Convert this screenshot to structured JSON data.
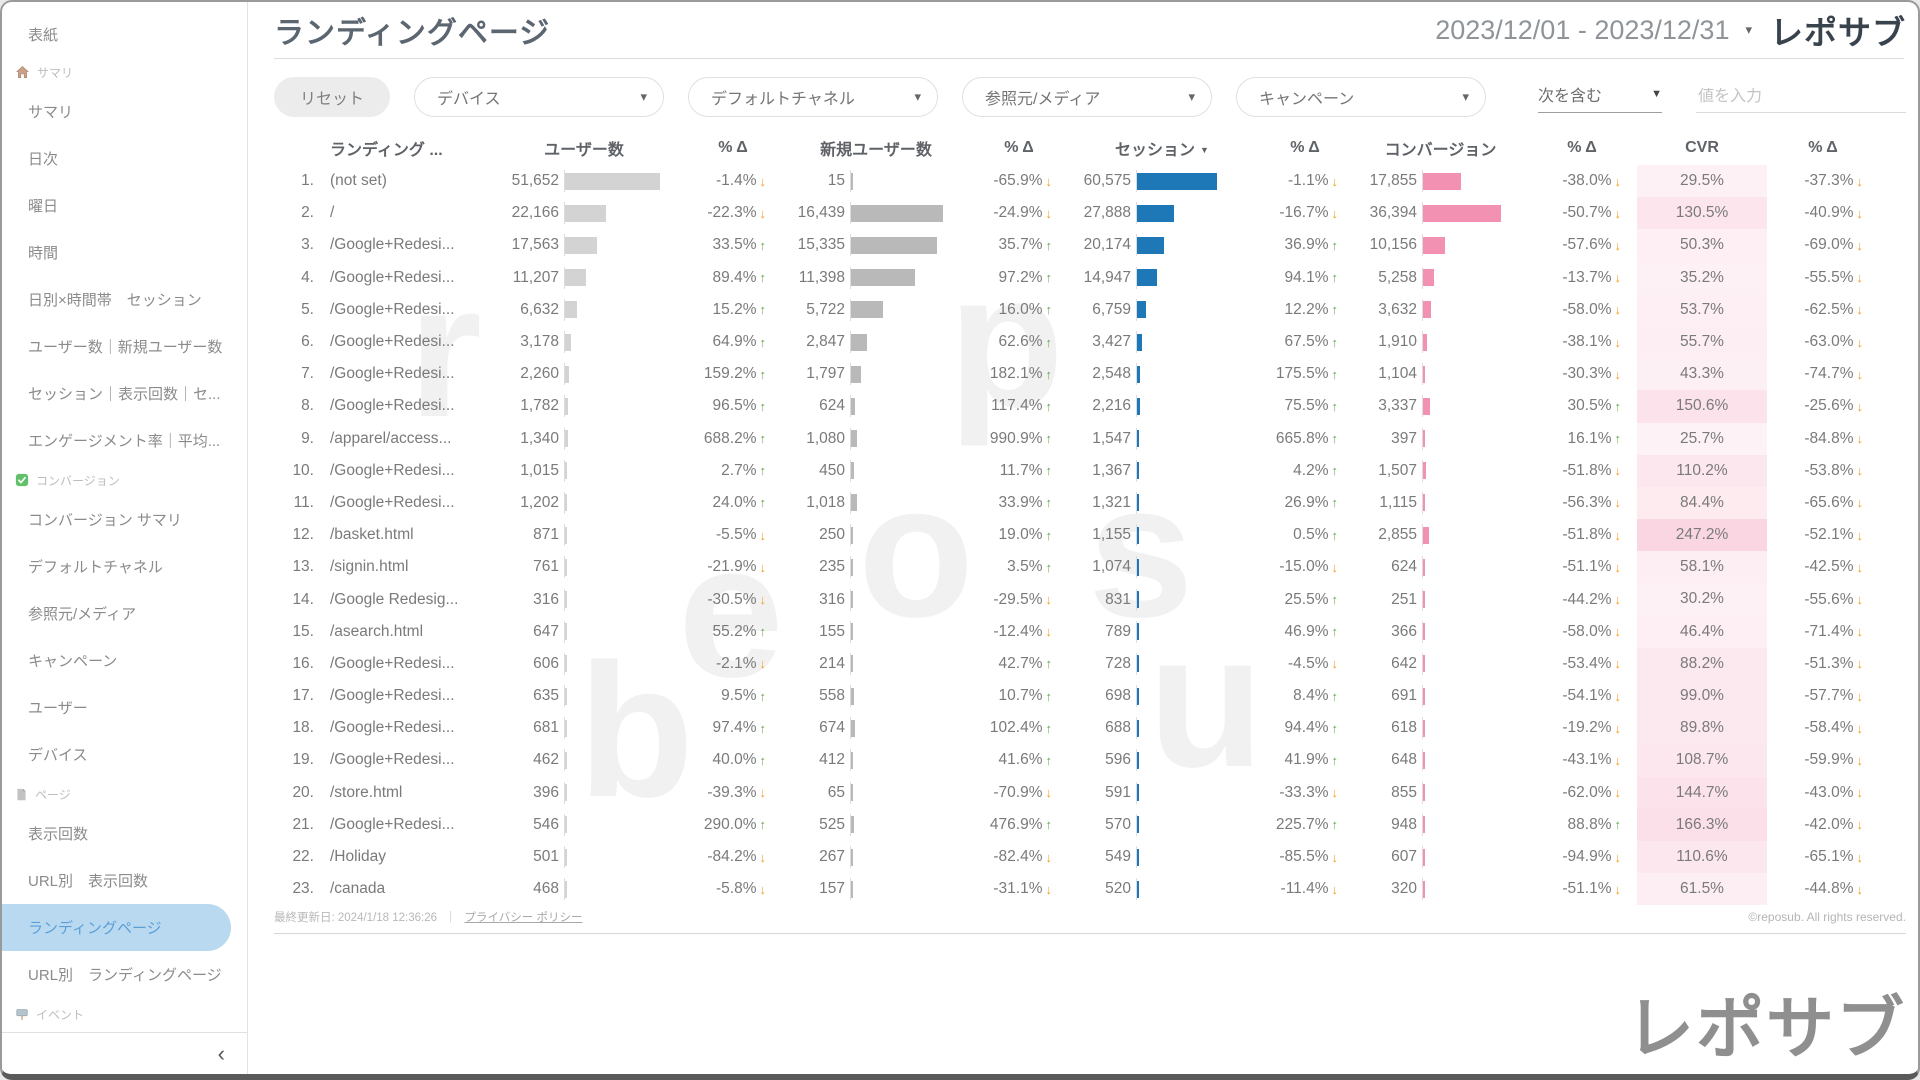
{
  "header": {
    "title": "ランディングページ",
    "date_range": "2023/12/01 - 2023/12/31",
    "logo": "レポサブ"
  },
  "icons": {
    "caret_down": "▾",
    "select_caret": "▼",
    "sort_desc": "▼",
    "up_arrow": "↑",
    "down_arrow": "↓",
    "collapse": "‹"
  },
  "sidebar": {
    "collapse_icon": "‹",
    "items": [
      {
        "label": "表紙",
        "type": "item"
      },
      {
        "label": "サマリ",
        "type": "section",
        "icon": "house-icon"
      },
      {
        "label": "サマリ",
        "type": "item"
      },
      {
        "label": "日次",
        "type": "item"
      },
      {
        "label": "曜日",
        "type": "item"
      },
      {
        "label": "時間",
        "type": "item"
      },
      {
        "label": "日別×時間帯　セッション",
        "type": "item"
      },
      {
        "label": "ユーザー数｜新規ユーザー数",
        "type": "item"
      },
      {
        "label": "セッション｜表示回数｜セ...",
        "type": "item"
      },
      {
        "label": "エンゲージメント率｜平均...",
        "type": "item"
      },
      {
        "label": "コンバージョン",
        "type": "section",
        "icon": "check-icon"
      },
      {
        "label": "コンバージョン サマリ",
        "type": "item"
      },
      {
        "label": "デフォルトチャネル",
        "type": "item"
      },
      {
        "label": "参照元/メディア",
        "type": "item"
      },
      {
        "label": "キャンペーン",
        "type": "item"
      },
      {
        "label": "ユーザー",
        "type": "item"
      },
      {
        "label": "デバイス",
        "type": "item"
      },
      {
        "label": "ページ",
        "type": "section",
        "icon": "page-icon"
      },
      {
        "label": "表示回数",
        "type": "item"
      },
      {
        "label": "URL別　表示回数",
        "type": "item"
      },
      {
        "label": "ランディングページ",
        "type": "item",
        "active": true
      },
      {
        "label": "URL別　ランディングページ",
        "type": "item"
      },
      {
        "label": "イベント",
        "type": "section",
        "icon": "sign-icon"
      }
    ]
  },
  "filters": {
    "reset_label": "リセット",
    "dropdowns": [
      {
        "key": "device",
        "label": "デバイス"
      },
      {
        "key": "default-channel",
        "label": "デフォルトチャネル"
      },
      {
        "key": "source-media",
        "label": "参照元/メディア"
      },
      {
        "key": "campaign",
        "label": "キャンペーン"
      }
    ],
    "condition": {
      "label": "次を含む"
    },
    "value_input_placeholder": "値を入力"
  },
  "table": {
    "columns": [
      "ランディング ...",
      "ユーザー数",
      "% Δ",
      "新規ユーザー数",
      "% Δ",
      "セッション",
      "% Δ",
      "コンバージョン",
      "% Δ",
      "CVR",
      "% Δ"
    ],
    "sorted_column": "セッション",
    "colors": {
      "users_bar": "#d3d3d3",
      "new_users_bar": "#b9b9b9",
      "sessions_bar": "#1e78b8",
      "conversions_bar": "#f291b2",
      "cvr_heat": "#f399b6",
      "up": "#6aa84f",
      "down": "#f49d25"
    },
    "max": {
      "users": 51652,
      "new_users": 16439,
      "sessions": 60575,
      "conversions": 36394,
      "cvr": 247.2
    },
    "rows": [
      {
        "n": "1.",
        "page": "(not set)",
        "u": 51652,
        "du": "-1.4%",
        "nu": 15,
        "dnu": "-65.9%",
        "s": 60575,
        "ds": "-1.1%",
        "c": 17855,
        "dc": "-38.0%",
        "cvr": "29.5%",
        "dcvr": "-37.3%"
      },
      {
        "n": "2.",
        "page": "/",
        "u": 22166,
        "du": "-22.3%",
        "nu": 16439,
        "dnu": "-24.9%",
        "s": 27888,
        "ds": "-16.7%",
        "c": 36394,
        "dc": "-50.7%",
        "cvr": "130.5%",
        "dcvr": "-40.9%"
      },
      {
        "n": "3.",
        "page": "/Google+Redesi...",
        "u": 17563,
        "du": "33.5%",
        "nu": 15335,
        "dnu": "35.7%",
        "s": 20174,
        "ds": "36.9%",
        "c": 10156,
        "dc": "-57.6%",
        "cvr": "50.3%",
        "dcvr": "-69.0%"
      },
      {
        "n": "4.",
        "page": "/Google+Redesi...",
        "u": 11207,
        "du": "89.4%",
        "nu": 11398,
        "dnu": "97.2%",
        "s": 14947,
        "ds": "94.1%",
        "c": 5258,
        "dc": "-13.7%",
        "cvr": "35.2%",
        "dcvr": "-55.5%"
      },
      {
        "n": "5.",
        "page": "/Google+Redesi...",
        "u": 6632,
        "du": "15.2%",
        "nu": 5722,
        "dnu": "16.0%",
        "s": 6759,
        "ds": "12.2%",
        "c": 3632,
        "dc": "-58.0%",
        "cvr": "53.7%",
        "dcvr": "-62.5%"
      },
      {
        "n": "6.",
        "page": "/Google+Redesi...",
        "u": 3178,
        "du": "64.9%",
        "nu": 2847,
        "dnu": "62.6%",
        "s": 3427,
        "ds": "67.5%",
        "c": 1910,
        "dc": "-38.1%",
        "cvr": "55.7%",
        "dcvr": "-63.0%"
      },
      {
        "n": "7.",
        "page": "/Google+Redesi...",
        "u": 2260,
        "du": "159.2%",
        "nu": 1797,
        "dnu": "182.1%",
        "s": 2548,
        "ds": "175.5%",
        "c": 1104,
        "dc": "-30.3%",
        "cvr": "43.3%",
        "dcvr": "-74.7%"
      },
      {
        "n": "8.",
        "page": "/Google+Redesi...",
        "u": 1782,
        "du": "96.5%",
        "nu": 624,
        "dnu": "117.4%",
        "s": 2216,
        "ds": "75.5%",
        "c": 3337,
        "dc": "30.5%",
        "cvr": "150.6%",
        "dcvr": "-25.6%"
      },
      {
        "n": "9.",
        "page": "/apparel/access...",
        "u": 1340,
        "du": "688.2%",
        "nu": 1080,
        "dnu": "990.9%",
        "s": 1547,
        "ds": "665.8%",
        "c": 397,
        "dc": "16.1%",
        "cvr": "25.7%",
        "dcvr": "-84.8%"
      },
      {
        "n": "10.",
        "page": "/Google+Redesi...",
        "u": 1015,
        "du": "2.7%",
        "nu": 450,
        "dnu": "11.7%",
        "s": 1367,
        "ds": "4.2%",
        "c": 1507,
        "dc": "-51.8%",
        "cvr": "110.2%",
        "dcvr": "-53.8%"
      },
      {
        "n": "11.",
        "page": "/Google+Redesi...",
        "u": 1202,
        "du": "24.0%",
        "nu": 1018,
        "dnu": "33.9%",
        "s": 1321,
        "ds": "26.9%",
        "c": 1115,
        "dc": "-56.3%",
        "cvr": "84.4%",
        "dcvr": "-65.6%"
      },
      {
        "n": "12.",
        "page": "/basket.html",
        "u": 871,
        "du": "-5.5%",
        "nu": 250,
        "dnu": "19.0%",
        "s": 1155,
        "ds": "0.5%",
        "c": 2855,
        "dc": "-51.8%",
        "cvr": "247.2%",
        "dcvr": "-52.1%"
      },
      {
        "n": "13.",
        "page": "/signin.html",
        "u": 761,
        "du": "-21.9%",
        "nu": 235,
        "dnu": "3.5%",
        "s": 1074,
        "ds": "-15.0%",
        "c": 624,
        "dc": "-51.1%",
        "cvr": "58.1%",
        "dcvr": "-42.5%"
      },
      {
        "n": "14.",
        "page": "/Google Redesig...",
        "u": 316,
        "du": "-30.5%",
        "nu": 316,
        "dnu": "-29.5%",
        "s": 831,
        "ds": "25.5%",
        "c": 251,
        "dc": "-44.2%",
        "cvr": "30.2%",
        "dcvr": "-55.6%"
      },
      {
        "n": "15.",
        "page": "/asearch.html",
        "u": 647,
        "du": "55.2%",
        "nu": 155,
        "dnu": "-12.4%",
        "s": 789,
        "ds": "46.9%",
        "c": 366,
        "dc": "-58.0%",
        "cvr": "46.4%",
        "dcvr": "-71.4%"
      },
      {
        "n": "16.",
        "page": "/Google+Redesi...",
        "u": 606,
        "du": "-2.1%",
        "nu": 214,
        "dnu": "42.7%",
        "s": 728,
        "ds": "-4.5%",
        "c": 642,
        "dc": "-53.4%",
        "cvr": "88.2%",
        "dcvr": "-51.3%"
      },
      {
        "n": "17.",
        "page": "/Google+Redesi...",
        "u": 635,
        "du": "9.5%",
        "nu": 558,
        "dnu": "10.7%",
        "s": 698,
        "ds": "8.4%",
        "c": 691,
        "dc": "-54.1%",
        "cvr": "99.0%",
        "dcvr": "-57.7%"
      },
      {
        "n": "18.",
        "page": "/Google+Redesi...",
        "u": 681,
        "du": "97.4%",
        "nu": 674,
        "dnu": "102.4%",
        "s": 688,
        "ds": "94.4%",
        "c": 618,
        "dc": "-19.2%",
        "cvr": "89.8%",
        "dcvr": "-58.4%"
      },
      {
        "n": "19.",
        "page": "/Google+Redesi...",
        "u": 462,
        "du": "40.0%",
        "nu": 412,
        "dnu": "41.6%",
        "s": 596,
        "ds": "41.9%",
        "c": 648,
        "dc": "-43.1%",
        "cvr": "108.7%",
        "dcvr": "-59.9%"
      },
      {
        "n": "20.",
        "page": "/store.html",
        "u": 396,
        "du": "-39.3%",
        "nu": 65,
        "dnu": "-70.9%",
        "s": 591,
        "ds": "-33.3%",
        "c": 855,
        "dc": "-62.0%",
        "cvr": "144.7%",
        "dcvr": "-43.0%"
      },
      {
        "n": "21.",
        "page": "/Google+Redesi...",
        "u": 546,
        "du": "290.0%",
        "nu": 525,
        "dnu": "476.9%",
        "s": 570,
        "ds": "225.7%",
        "c": 948,
        "dc": "88.8%",
        "cvr": "166.3%",
        "dcvr": "-42.0%"
      },
      {
        "n": "22.",
        "page": "/Holiday",
        "u": 501,
        "du": "-84.2%",
        "nu": 267,
        "dnu": "-82.4%",
        "s": 549,
        "ds": "-85.5%",
        "c": 607,
        "dc": "-94.9%",
        "cvr": "110.6%",
        "dcvr": "-65.1%"
      },
      {
        "n": "23.",
        "page": "/canada",
        "u": 468,
        "du": "-5.8%",
        "nu": 157,
        "dnu": "-31.1%",
        "s": 520,
        "ds": "-11.4%",
        "c": 320,
        "dc": "-51.1%",
        "cvr": "61.5%",
        "dcvr": "-44.8%"
      }
    ]
  },
  "footer": {
    "last_updated": "最終更新日: 2024/1/18 12:36:26",
    "separator": "｜",
    "privacy": "プライバシー ポリシー",
    "copyright": "©reposub. All rights reserved.",
    "logo": "レポサブ"
  },
  "watermark": "reposub"
}
